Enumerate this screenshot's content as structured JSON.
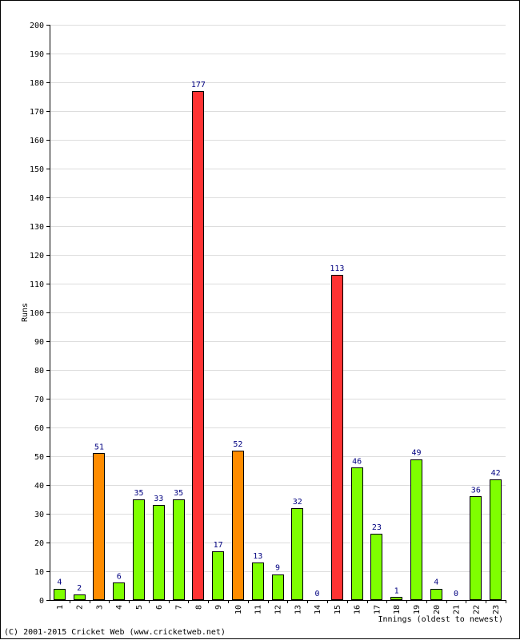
{
  "chart_data": {
    "type": "bar",
    "xlabel": "Innings (oldest to newest)",
    "ylabel": "Runs",
    "ylim": [
      0,
      200
    ],
    "ytick_step": 10,
    "grid": true,
    "categories": [
      "1",
      "2",
      "3",
      "4",
      "5",
      "6",
      "7",
      "8",
      "9",
      "10",
      "11",
      "12",
      "13",
      "14",
      "15",
      "16",
      "17",
      "18",
      "19",
      "20",
      "21",
      "22",
      "23"
    ],
    "values": [
      4,
      2,
      51,
      6,
      35,
      33,
      35,
      177,
      17,
      52,
      13,
      9,
      32,
      0,
      113,
      46,
      23,
      1,
      49,
      4,
      0,
      36,
      42
    ],
    "bar_colors": [
      "#7fff00",
      "#7fff00",
      "#ff8c00",
      "#7fff00",
      "#7fff00",
      "#7fff00",
      "#7fff00",
      "#ff3333",
      "#7fff00",
      "#ff8c00",
      "#7fff00",
      "#7fff00",
      "#7fff00",
      "#7fff00",
      "#ff3333",
      "#7fff00",
      "#7fff00",
      "#7fff00",
      "#7fff00",
      "#7fff00",
      "#7fff00",
      "#7fff00",
      "#7fff00"
    ],
    "value_label_color": "#000080",
    "grid_color": "#dddddd"
  },
  "footer": {
    "copyright": "(C) 2001-2015 Cricket Web (www.cricketweb.net)"
  }
}
